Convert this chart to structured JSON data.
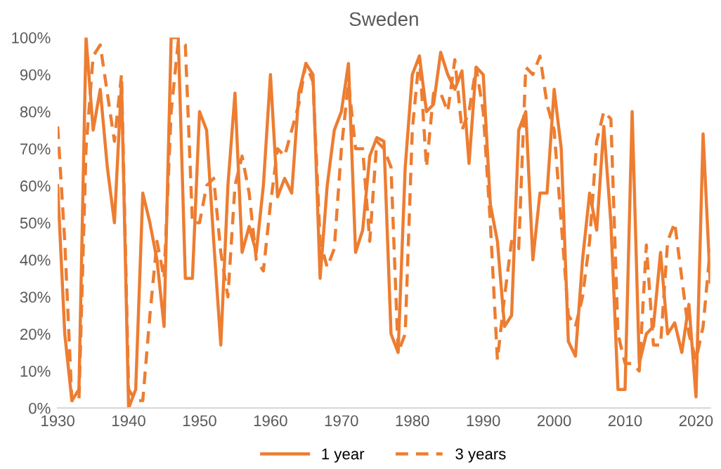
{
  "chart_data": {
    "type": "line",
    "title": "Sweden",
    "x": [
      1930,
      1931,
      1932,
      1933,
      1934,
      1935,
      1936,
      1937,
      1938,
      1939,
      1940,
      1941,
      1942,
      1943,
      1944,
      1945,
      1946,
      1947,
      1948,
      1949,
      1950,
      1951,
      1952,
      1953,
      1954,
      1955,
      1956,
      1957,
      1958,
      1959,
      1960,
      1961,
      1962,
      1963,
      1964,
      1965,
      1966,
      1967,
      1968,
      1969,
      1970,
      1971,
      1972,
      1973,
      1974,
      1975,
      1976,
      1977,
      1978,
      1979,
      1980,
      1981,
      1982,
      1983,
      1984,
      1985,
      1986,
      1987,
      1988,
      1989,
      1990,
      1991,
      1992,
      1993,
      1994,
      1995,
      1996,
      1997,
      1998,
      1999,
      2000,
      2001,
      2002,
      2003,
      2004,
      2005,
      2006,
      2007,
      2008,
      2009,
      2010,
      2011,
      2012,
      2013,
      2014,
      2015,
      2016,
      2017,
      2018,
      2019,
      2020,
      2021,
      2022
    ],
    "series": [
      {
        "name": "1 year",
        "color": "#ed7d31",
        "line_style": "solid",
        "values": [
          60,
          20,
          2,
          5,
          100,
          75,
          86,
          65,
          50,
          88,
          0,
          5,
          58,
          50,
          40,
          22,
          100,
          100,
          35,
          35,
          80,
          75,
          45,
          17,
          60,
          85,
          42,
          49,
          42,
          60,
          90,
          57,
          62,
          58,
          85,
          93,
          90,
          35,
          60,
          75,
          80,
          93,
          42,
          48,
          68,
          73,
          72,
          20,
          15,
          65,
          90,
          95,
          80,
          82,
          96,
          90,
          86,
          91,
          66,
          92,
          90,
          55,
          45,
          22,
          25,
          75,
          80,
          40,
          58,
          58,
          86,
          70,
          18,
          14,
          40,
          58,
          48,
          76,
          50,
          5,
          5,
          80,
          12,
          20,
          22,
          42,
          20,
          23,
          15,
          28,
          3,
          74,
          34
        ]
      },
      {
        "name": "3 years",
        "color": "#ed7d31",
        "line_style": "dashed",
        "values": [
          76,
          45,
          2,
          2,
          70,
          95,
          98,
          85,
          72,
          90,
          5,
          2,
          2,
          25,
          45,
          35,
          80,
          99,
          98,
          50,
          50,
          60,
          62,
          42,
          30,
          60,
          68,
          58,
          40,
          37,
          55,
          70,
          68,
          75,
          82,
          93,
          88,
          45,
          38,
          43,
          70,
          88,
          70,
          70,
          45,
          72,
          70,
          65,
          15,
          20,
          75,
          95,
          65,
          85,
          85,
          80,
          94,
          75,
          80,
          92,
          80,
          50,
          13,
          30,
          45,
          43,
          92,
          90,
          95,
          82,
          75,
          50,
          25,
          22,
          30,
          45,
          72,
          80,
          78,
          20,
          12,
          12,
          10,
          44,
          17,
          17,
          45,
          50,
          35,
          20,
          13,
          22,
          43
        ]
      }
    ],
    "xlim": [
      1930,
      2022
    ],
    "xticks": [
      1930,
      1940,
      1950,
      1960,
      1970,
      1980,
      1990,
      2000,
      2010,
      2020
    ],
    "ylim": [
      0,
      100
    ],
    "yticks": [
      {
        "value": 0,
        "label": "0%"
      },
      {
        "value": 10,
        "label": "10%"
      },
      {
        "value": 20,
        "label": "20%"
      },
      {
        "value": 30,
        "label": "30%"
      },
      {
        "value": 40,
        "label": "40%"
      },
      {
        "value": 50,
        "label": "50%"
      },
      {
        "value": 60,
        "label": "60%"
      },
      {
        "value": 70,
        "label": "70%"
      },
      {
        "value": 80,
        "label": "80%"
      },
      {
        "value": 90,
        "label": "90%"
      },
      {
        "value": 100,
        "label": "100%"
      }
    ],
    "grid": false,
    "legend": "bottom",
    "marker": "none"
  }
}
